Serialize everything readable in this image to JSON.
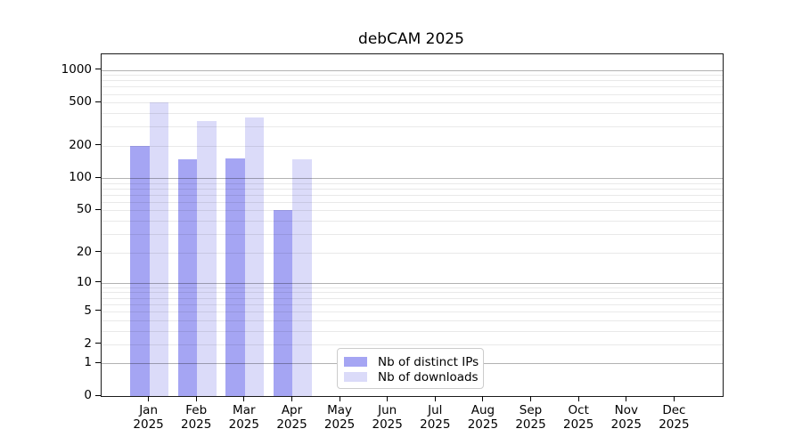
{
  "title": "debCAM 2025",
  "colors": {
    "bar_distinct_ips": "#a5a5f3",
    "bar_downloads": "#dbdbf9",
    "grid_major": "rgba(0,0,0,0.30)",
    "grid_minor": "rgba(0,0,0,0.085)",
    "axis_spine": "#1a1a1a",
    "legend_border": "#cccccc",
    "background": "#ffffff"
  },
  "chart_data": {
    "type": "bar",
    "title": "debCAM 2025",
    "categories": [
      "Jan 2025",
      "Feb 2025",
      "Mar 2025",
      "Apr 2025",
      "May 2025",
      "Jun 2025",
      "Jul 2025",
      "Aug 2025",
      "Sep 2025",
      "Oct 2025",
      "Nov 2025",
      "Dec 2025"
    ],
    "series": [
      {
        "name": "Nb of distinct IPs",
        "color": "#a5a5f3",
        "values": [
          200,
          150,
          153,
          50,
          0,
          0,
          0,
          0,
          0,
          0,
          0,
          0
        ]
      },
      {
        "name": "Nb of downloads",
        "color": "#dbdbf9",
        "values": [
          503,
          335,
          363,
          149,
          0,
          0,
          0,
          0,
          0,
          0,
          0,
          0
        ]
      }
    ],
    "xlabel": "",
    "ylabel": "",
    "yscale": "log10(1+x)",
    "yticks": [
      0,
      1,
      2,
      5,
      10,
      20,
      50,
      100,
      200,
      500,
      1000
    ],
    "grid_major_at": [
      1,
      10,
      100,
      1000
    ],
    "ylim": [
      0,
      1390
    ],
    "grid": "horizontal major+minor, drawn over bars",
    "legend_position": "inside, lower center"
  }
}
